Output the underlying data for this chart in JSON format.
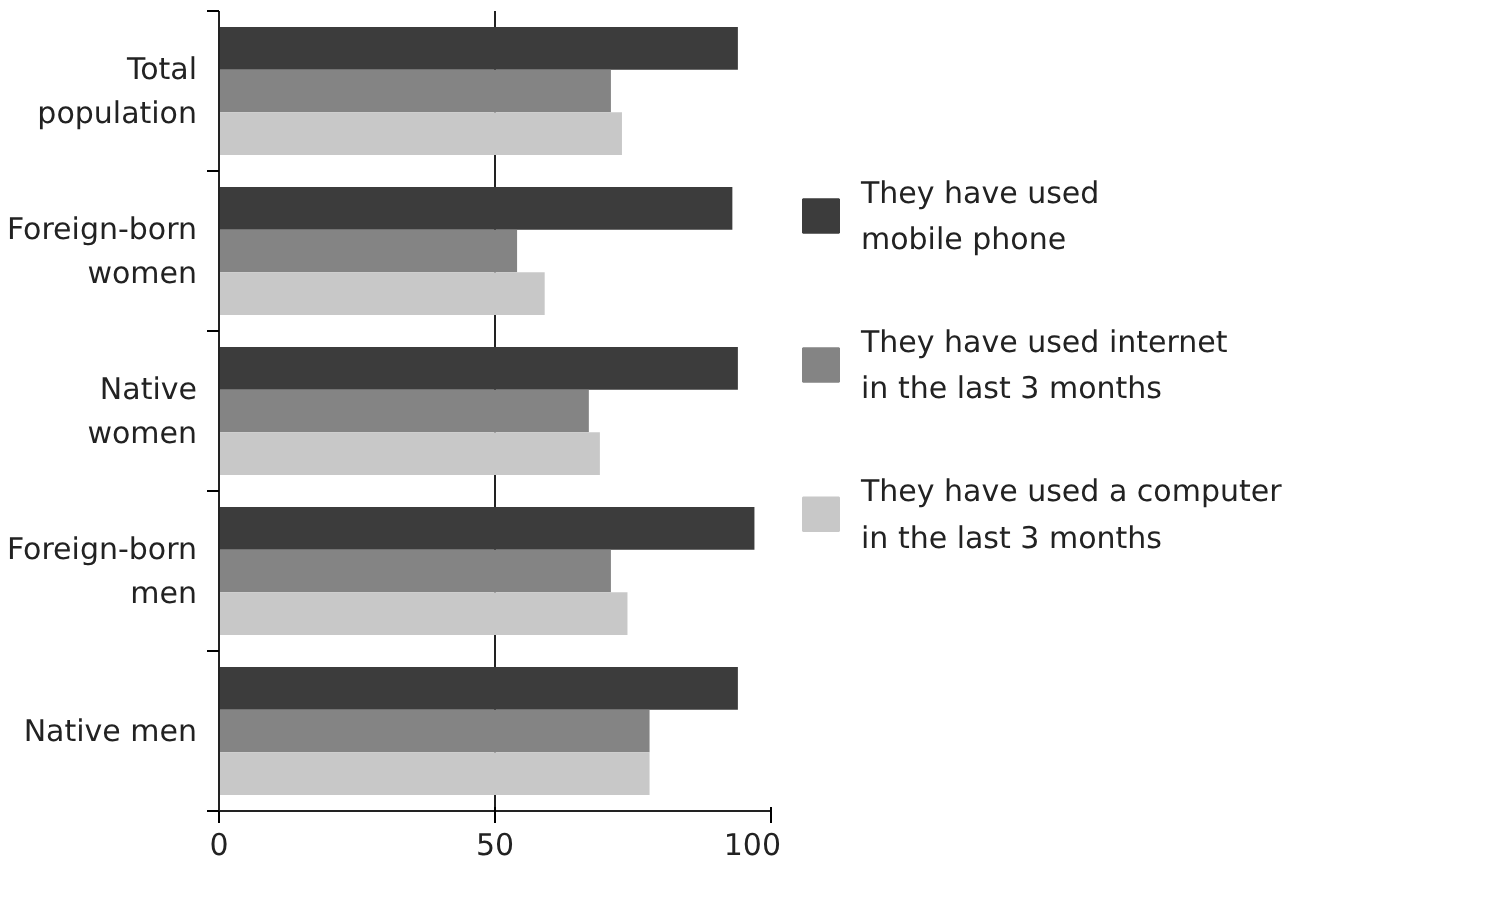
{
  "chart_data": {
    "type": "bar",
    "orientation": "horizontal",
    "categories": [
      "Total\npopulation",
      "Foreign-born\nwomen",
      "Native\nwomen",
      "Foreign-born\nmen",
      "Native men"
    ],
    "series": [
      {
        "name": "They have used\nmobile phone",
        "color": "#3c3c3c",
        "values": [
          94,
          93,
          94,
          97,
          94
        ]
      },
      {
        "name": "They have used internet\nin the last 3 months",
        "color": "#848484",
        "values": [
          71,
          54,
          67,
          71,
          78
        ]
      },
      {
        "name": "They have used a computer\nin the last 3 months",
        "color": "#c8c8c8",
        "values": [
          73,
          59,
          69,
          74,
          78
        ]
      }
    ],
    "xlim": [
      0,
      100
    ],
    "xticks": [
      0,
      50,
      100
    ],
    "grid": "x",
    "legend": "right"
  }
}
